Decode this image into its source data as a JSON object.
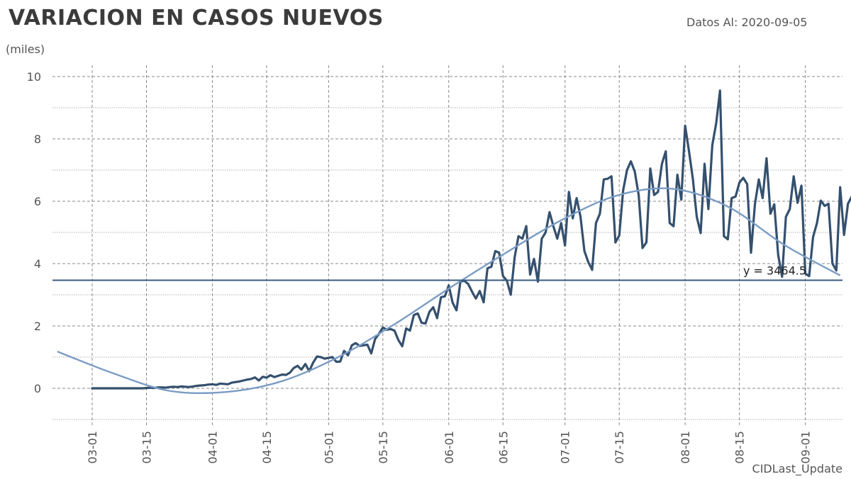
{
  "header": {
    "title": "VARIACION EN CASOS NUEVOS",
    "date_label": "Datos Al: 2020-09-05",
    "unit_label": "(miles)",
    "footer_label": "CIDLast_Update"
  },
  "chart_data": {
    "type": "line",
    "title": "VARIACION EN CASOS NUEVOS",
    "xlabel": "",
    "ylabel": "(miles)",
    "ylim": [
      -1,
      10.5
    ],
    "yticks": [
      0,
      2,
      4,
      6,
      8,
      10
    ],
    "x_start": "2020-02-21",
    "x_end": "2020-09-10",
    "xtick_labels": [
      "03-01",
      "03-15",
      "04-01",
      "04-15",
      "05-01",
      "05-15",
      "06-01",
      "06-15",
      "07-01",
      "07-15",
      "08-01",
      "08-15",
      "09-01"
    ],
    "grid": true,
    "legend": "none",
    "colors": {
      "series": "#34506e",
      "trend": "#7b9cc4",
      "reference": "#3a5b80"
    },
    "series": [
      {
        "x_start": "2020-03-01",
        "values": [
          0,
          0,
          0,
          0,
          0,
          0,
          0,
          0,
          0,
          0,
          0,
          0,
          0,
          0,
          0.01,
          0.02,
          0.01,
          0.03,
          0.03,
          0.02,
          0.04,
          0.05,
          0.04,
          0.06,
          0.05,
          0.04,
          0.06,
          0.08,
          0.09,
          0.1,
          0.12,
          0.13,
          0.11,
          0.15,
          0.14,
          0.13,
          0.18,
          0.2,
          0.22,
          0.25,
          0.28,
          0.3,
          0.35,
          0.25,
          0.37,
          0.34,
          0.42,
          0.36,
          0.4,
          0.44,
          0.43,
          0.5,
          0.65,
          0.72,
          0.6,
          0.78,
          0.55,
          0.82,
          1.02,
          1.0,
          0.95,
          0.98,
          1.0,
          0.85,
          0.86,
          1.2,
          1.06,
          1.38,
          1.45,
          1.36,
          1.38,
          1.4,
          1.12,
          1.58,
          1.75,
          1.95,
          1.88,
          1.9,
          1.85,
          1.55,
          1.35,
          1.92,
          1.85,
          2.35,
          2.4,
          2.1,
          2.08,
          2.45,
          2.6,
          2.25,
          2.92,
          2.95,
          3.3,
          2.75,
          2.5,
          3.42,
          3.45,
          3.35,
          3.1,
          2.88,
          3.12,
          2.76,
          3.85,
          3.9,
          4.4,
          4.35,
          3.6,
          3.45,
          3.0,
          4.2,
          4.88,
          4.8,
          5.2,
          3.65,
          4.15,
          3.42,
          4.8,
          5.0,
          5.65,
          5.2,
          4.8,
          5.3,
          4.58,
          6.3,
          5.45,
          6.1,
          5.5,
          4.4,
          4.05,
          3.8,
          5.3,
          5.6,
          6.7,
          6.72,
          6.8,
          4.68,
          4.9,
          6.35,
          7.0,
          7.28,
          6.95,
          6.2,
          4.5,
          4.68,
          7.05,
          6.2,
          6.3,
          7.2,
          7.6,
          5.3,
          5.2,
          6.85,
          6.05,
          8.42,
          7.6,
          6.7,
          5.5,
          4.98,
          7.2,
          5.75,
          7.8,
          8.5,
          9.55,
          4.88,
          4.78,
          6.1,
          6.15,
          6.6,
          6.75,
          6.55,
          4.35,
          5.9,
          6.7,
          6.1,
          7.38,
          5.6,
          5.9,
          4.28,
          3.58,
          5.5,
          5.75,
          6.8,
          5.95,
          6.5,
          3.68,
          3.6,
          4.85,
          5.3,
          6.02,
          5.85,
          5.92,
          4.0,
          3.78,
          6.45,
          4.92,
          5.92,
          6.15,
          6.28
        ]
      },
      {
        "name": "",
        "kind": "trend",
        "x_start": "2020-02-21",
        "x_end": "2020-09-10",
        "values": [
          1.18,
          0.48,
          -0.08,
          -0.12,
          0.22,
          0.98,
          2.02,
          3.2,
          4.32,
          5.38,
          6.18,
          6.4,
          5.82,
          4.6,
          3.62
        ]
      }
    ],
    "reference_line": {
      "y": 3.4645,
      "label": "y = 3464.5"
    }
  }
}
